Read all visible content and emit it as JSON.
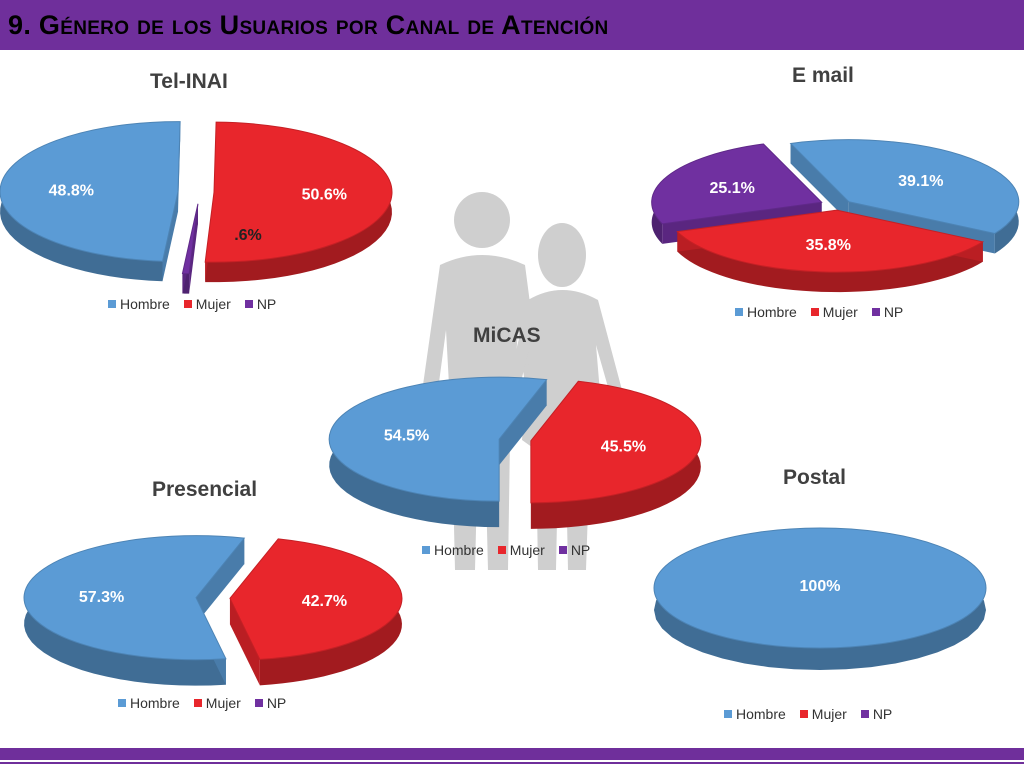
{
  "header": {
    "title": "9. Género de los Usuarios por Canal de Atención"
  },
  "colors": {
    "hombre": "#5b9bd5",
    "mujer": "#e8262c",
    "np": "#7030a0",
    "header": "#6f2f9b"
  },
  "legend": [
    "Hombre",
    "Mujer",
    "NP"
  ],
  "chart_data": [
    {
      "type": "pie",
      "title": "Tel-INAI",
      "categories": [
        "Hombre",
        "Mujer",
        "NP"
      ],
      "values": [
        48.8,
        50.6,
        0.6
      ],
      "labels": [
        "48.8%",
        "50.6%",
        ".6%"
      ]
    },
    {
      "type": "pie",
      "title": "E mail",
      "categories": [
        "Hombre",
        "Mujer",
        "NP"
      ],
      "values": [
        39.1,
        35.8,
        25.1
      ],
      "labels": [
        "39.1%",
        "35.8%",
        "25.1%"
      ]
    },
    {
      "type": "pie",
      "title": "MiCAS",
      "categories": [
        "Hombre",
        "Mujer",
        "NP"
      ],
      "values": [
        54.5,
        45.5,
        0
      ],
      "labels": [
        "54.5%",
        "45.5%",
        ""
      ]
    },
    {
      "type": "pie",
      "title": "Presencial",
      "categories": [
        "Hombre",
        "Mujer",
        "NP"
      ],
      "values": [
        57.3,
        42.7,
        0
      ],
      "labels": [
        "57.3%",
        "42.7%",
        ""
      ]
    },
    {
      "type": "pie",
      "title": "Postal",
      "categories": [
        "Hombre",
        "Mujer",
        "NP"
      ],
      "values": [
        100,
        0,
        0
      ],
      "labels": [
        "100%",
        "",
        ""
      ]
    }
  ]
}
